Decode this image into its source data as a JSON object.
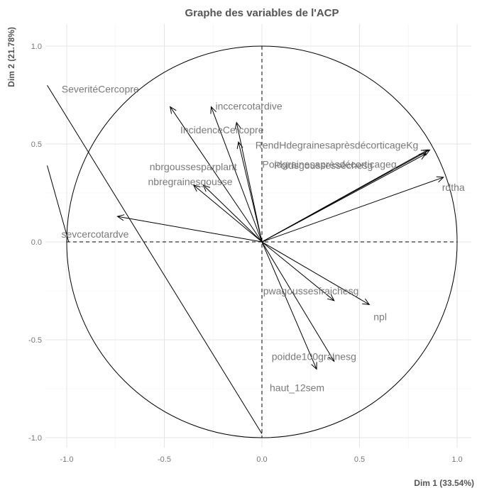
{
  "chart_data": {
    "type": "scatter",
    "subtype": "pca-variable-correlation-circle",
    "title": "Graphe des variables de l'ACP",
    "xlabel": "Dim 1 (33.54%)",
    "ylabel": "Dim 2 (21.78%)",
    "xlim": [
      -1.1,
      1.1
    ],
    "ylim": [
      -1.1,
      1.1
    ],
    "x_ticks": [
      -1.0,
      -0.5,
      0.0,
      0.5,
      1.0
    ],
    "y_ticks": [
      -1.0,
      -0.5,
      0.0,
      0.5,
      1.0
    ],
    "x_tick_labels": [
      "-1.0",
      "-0.5",
      "0.0",
      "0.5",
      "1.0"
    ],
    "y_tick_labels": [
      "-1.0",
      "-0.5",
      "0.0",
      "0.5",
      "1.0"
    ],
    "grid": true,
    "legend": "none",
    "unit_circle": true,
    "variables": [
      {
        "name": "SeveritéCercopre",
        "x": -0.47,
        "y": 0.69
      },
      {
        "name": "inccercotardive",
        "x": -0.26,
        "y": 0.69
      },
      {
        "name": "",
        "x": -0.13,
        "y": 0.61
      },
      {
        "name": "IncidenceCercopre",
        "x": -0.12,
        "y": 0.51
      },
      {
        "name": "nbrgoussesparplant",
        "x": -0.35,
        "y": 0.29
      },
      {
        "name": "nbregrainesgousse",
        "x": -0.3,
        "y": 0.29
      },
      {
        "name": "sevcercotardve",
        "x": -0.74,
        "y": 0.13
      },
      {
        "name": "RendHdegrainesaprèsdécorticageKg",
        "x": 0.85,
        "y": 0.47
      },
      {
        "name": "Poidsgoussessèchesg",
        "x": 0.84,
        "y": 0.45
      },
      {
        "name": "Poidgrainesaprèsdécorticageg",
        "x": 0.86,
        "y": 0.47
      },
      {
        "name": "rdtha",
        "x": 0.93,
        "y": 0.33
      },
      {
        "name": "pwagoussesfraichesg",
        "x": 0.37,
        "y": -0.3
      },
      {
        "name": "npl",
        "x": 0.55,
        "y": -0.32
      },
      {
        "name": "poidde100grainesg",
        "x": 0.37,
        "y": -0.61
      },
      {
        "name": "haut_12sem",
        "x": 0.28,
        "y": -0.65
      }
    ],
    "reference_lines": [
      {
        "x1": -1.1,
        "y1": 0.8,
        "x2": 0.0,
        "y2": -0.98
      },
      {
        "x1": -1.1,
        "y1": 0.39,
        "x2": -0.99,
        "y2": 0.0
      }
    ]
  }
}
